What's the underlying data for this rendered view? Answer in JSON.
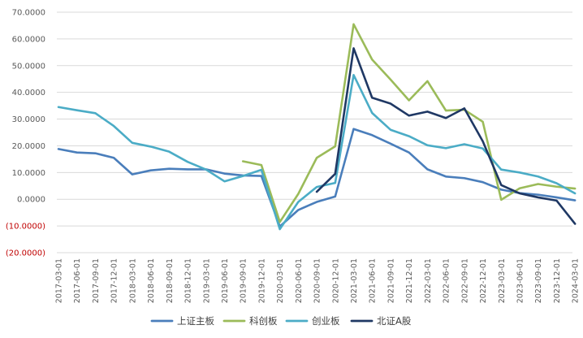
{
  "chart_data": {
    "type": "line",
    "title": "",
    "xlabel": "",
    "ylabel": "",
    "ylim": [
      -20,
      70
    ],
    "y_tick_values": [
      -20,
      -10,
      0,
      10,
      20,
      30,
      40,
      50,
      60,
      70
    ],
    "y_tick_labels": [
      "(20.0000)",
      "(10.0000)",
      "0.0000",
      "10.0000",
      "20.0000",
      "30.0000",
      "40.0000",
      "50.0000",
      "60.0000",
      "70.0000"
    ],
    "negative_label_color": "#C00000",
    "positive_label_color": "#595959",
    "grid": true,
    "gridline_color": "#D9D9D9",
    "legend_position": "bottom",
    "categories": [
      "2017-03-01",
      "2017-06-01",
      "2017-09-01",
      "2017-12-01",
      "2018-03-01",
      "2018-06-01",
      "2018-09-01",
      "2018-12-01",
      "2019-03-01",
      "2019-06-01",
      "2019-09-01",
      "2019-12-01",
      "2020-03-01",
      "2020-06-01",
      "2020-09-01",
      "2020-12-01",
      "2021-03-01",
      "2021-06-01",
      "2021-09-01",
      "2021-12-01",
      "2022-03-01",
      "2022-06-01",
      "2022-09-01",
      "2022-12-01",
      "2023-03-01",
      "2023-06-01",
      "2023-09-01",
      "2023-12-01",
      "2024-03-01"
    ],
    "series": [
      {
        "name": "上证主板",
        "color": "#4A7EBB",
        "values": [
          18.8,
          17.5,
          17.2,
          15.5,
          9.3,
          10.8,
          11.4,
          11.2,
          11.2,
          9.6,
          8.9,
          8.7,
          -10.2,
          -4.0,
          -1.0,
          1.0,
          26.3,
          24.0,
          20.8,
          17.5,
          11.2,
          8.5,
          7.9,
          6.4,
          3.6,
          2.3,
          1.7,
          0.7,
          -0.4
        ]
      },
      {
        "name": "科创板",
        "color": "#9BBB59",
        "values": [
          null,
          null,
          null,
          null,
          null,
          null,
          null,
          null,
          null,
          null,
          14.2,
          12.8,
          -8.5,
          2.0,
          15.5,
          19.8,
          65.5,
          52.3,
          44.8,
          37.0,
          44.2,
          33.2,
          33.5,
          29.0,
          -0.2,
          4.1,
          5.7,
          4.7,
          4.0
        ]
      },
      {
        "name": "创业板",
        "color": "#4BACC6",
        "values": [
          34.5,
          33.3,
          32.2,
          27.4,
          21.1,
          19.7,
          17.8,
          14.0,
          11.1,
          6.7,
          8.7,
          11.0,
          -11.2,
          -1.0,
          4.6,
          6.1,
          46.5,
          32.3,
          26.0,
          23.6,
          20.2,
          19.1,
          20.6,
          19.0,
          11.1,
          10.0,
          8.5,
          6.0,
          2.2
        ]
      },
      {
        "name": "北证A股",
        "color": "#1F3864",
        "values": [
          null,
          null,
          null,
          null,
          null,
          null,
          null,
          null,
          null,
          null,
          null,
          null,
          null,
          null,
          2.8,
          9.5,
          56.5,
          38.0,
          35.8,
          31.3,
          32.8,
          30.4,
          34.0,
          21.7,
          5.3,
          2.2,
          0.7,
          -0.5,
          -9.2
        ]
      }
    ]
  }
}
